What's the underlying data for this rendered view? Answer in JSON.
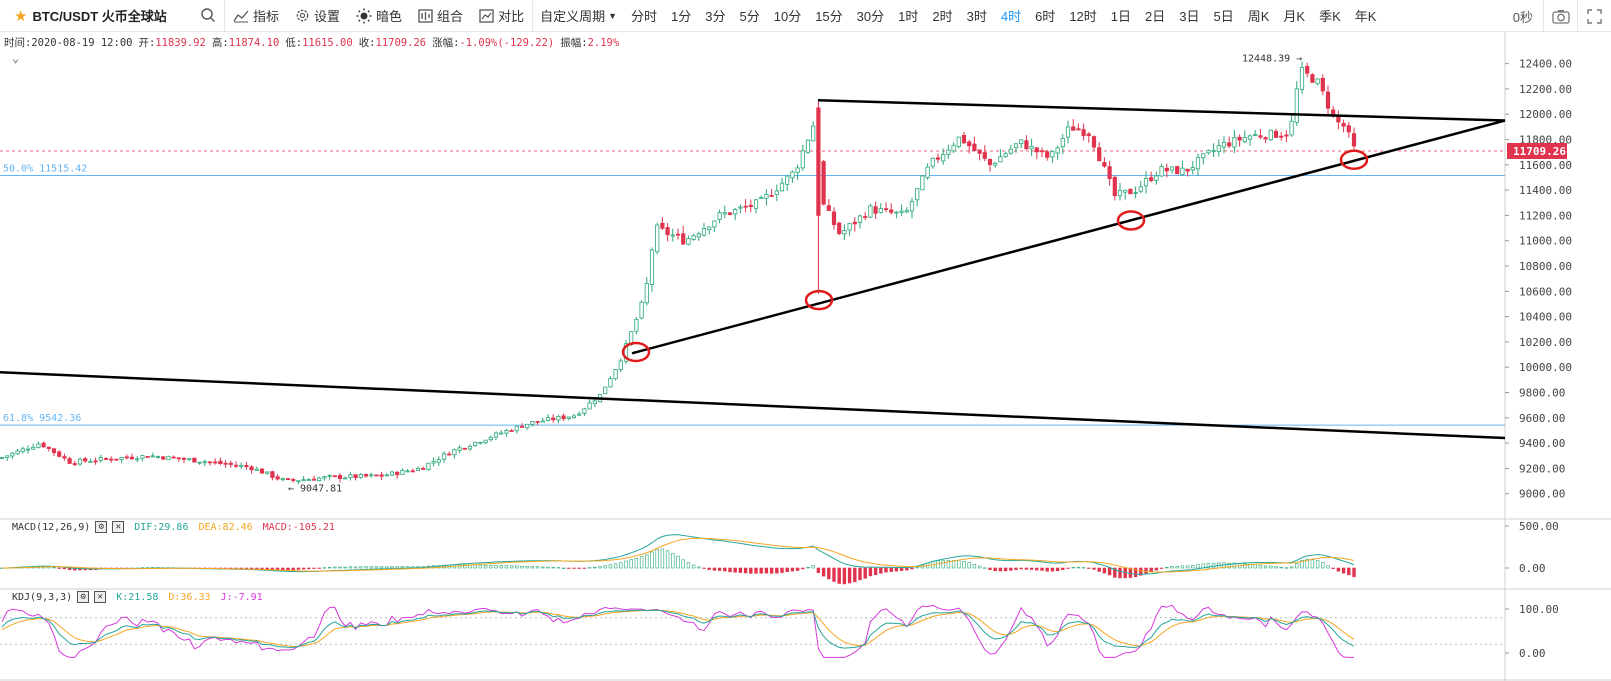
{
  "toolbar": {
    "symbol": "BTC/USDT 火币全球站",
    "tools": [
      "指标",
      "设置",
      "暗色",
      "组合",
      "对比"
    ],
    "custom_period": "自定义周期",
    "periods": [
      "分时",
      "1分",
      "3分",
      "5分",
      "10分",
      "15分",
      "30分",
      "1时",
      "2时",
      "3时",
      "4时",
      "6时",
      "12时",
      "1日",
      "2日",
      "3日",
      "5日",
      "周K",
      "月K",
      "季K",
      "年K"
    ],
    "active_period": "4时",
    "countdown": "0秒"
  },
  "info": {
    "time_label": "时间:2020-08-19 12:00",
    "open_label": "开:",
    "open": "11839.92",
    "high_label": "高:",
    "high": "11874.10",
    "low_label": "低:",
    "low": "11615.00",
    "close_label": "收:",
    "close": "11709.26",
    "change_label": "涨幅:",
    "change": "-1.09%(-129.22)",
    "amp_label": "振幅:",
    "amp": "2.19%"
  },
  "macd": {
    "title": "MACD(12,26,9)",
    "dif": "DIF:29.86",
    "dea": "DEA:82.46",
    "macd": "MACD:-105.21"
  },
  "kdj": {
    "title": "KDJ(9,3,3)",
    "k": "K:21.58",
    "d": "D:36.33",
    "j": "J:-7.91"
  },
  "colors": {
    "up": "#2aa876",
    "down": "#e0334d",
    "fib": "#64b5f6",
    "dif": "#26a69a",
    "dea": "#f5a623",
    "j": "#d63adb",
    "accent": "#2196f3"
  },
  "chart_data": {
    "type": "candlestick",
    "ylim": [
      8800,
      12650
    ],
    "y_ticks": [
      9000,
      9200,
      9400,
      9600,
      9800,
      10000,
      10200,
      10400,
      10600,
      10800,
      11000,
      11200,
      11400,
      11600,
      11800,
      12000,
      12200,
      12400
    ],
    "last_price": 11709.26,
    "last_price_label": "11709.26",
    "fib_levels": [
      {
        "label": "50.0% 11515.42",
        "value": 11515.42
      },
      {
        "label": "61.8% 9542.36",
        "value": 9542.36
      }
    ],
    "annotations": [
      {
        "label": "12448.39 →",
        "value": 12448.39
      },
      {
        "label": "← 9047.81",
        "value": 9047.81
      }
    ],
    "anchors": [
      [
        0,
        9280
      ],
      [
        40,
        9400
      ],
      [
        70,
        9250
      ],
      [
        100,
        9270
      ],
      [
        150,
        9300
      ],
      [
        200,
        9260
      ],
      [
        250,
        9210
      ],
      [
        285,
        9100
      ],
      [
        330,
        9130
      ],
      [
        380,
        9140
      ],
      [
        420,
        9200
      ],
      [
        450,
        9330
      ],
      [
        490,
        9450
      ],
      [
        530,
        9560
      ],
      [
        575,
        9620
      ],
      [
        600,
        9780
      ],
      [
        620,
        10050
      ],
      [
        645,
        10550
      ],
      [
        655,
        11100
      ],
      [
        685,
        11000
      ],
      [
        720,
        11200
      ],
      [
        760,
        11300
      ],
      [
        795,
        11550
      ],
      [
        815,
        11950
      ],
      [
        822,
        11300
      ],
      [
        840,
        11050
      ],
      [
        870,
        11250
      ],
      [
        905,
        11200
      ],
      [
        930,
        11600
      ],
      [
        960,
        11820
      ],
      [
        990,
        11600
      ],
      [
        1020,
        11780
      ],
      [
        1050,
        11650
      ],
      [
        1070,
        11900
      ],
      [
        1090,
        11850
      ],
      [
        1115,
        11350
      ],
      [
        1135,
        11400
      ],
      [
        1160,
        11560
      ],
      [
        1185,
        11550
      ],
      [
        1220,
        11750
      ],
      [
        1250,
        11830
      ],
      [
        1290,
        11850
      ],
      [
        1300,
        12350
      ],
      [
        1318,
        12250
      ],
      [
        1335,
        11950
      ],
      [
        1345,
        11900
      ],
      [
        1355,
        11709
      ]
    ],
    "trendlines": [
      {
        "from": [
          818,
          12110
        ],
        "to": [
          1505,
          11950
        ]
      },
      {
        "from": [
          632,
          10110
        ],
        "to": [
          1505,
          11950
        ]
      },
      {
        "from": [
          0,
          9960
        ],
        "to": [
          1505,
          9440
        ]
      }
    ],
    "circles": [
      {
        "x": 636,
        "y": 10120
      },
      {
        "x": 819,
        "y": 10530
      },
      {
        "x": 1131,
        "y": 11160
      },
      {
        "x": 1354,
        "y": 11640
      }
    ],
    "macd_ticks": [
      "500.00",
      "0.00"
    ],
    "kdj_ticks": [
      "100.00",
      "0.00"
    ]
  }
}
